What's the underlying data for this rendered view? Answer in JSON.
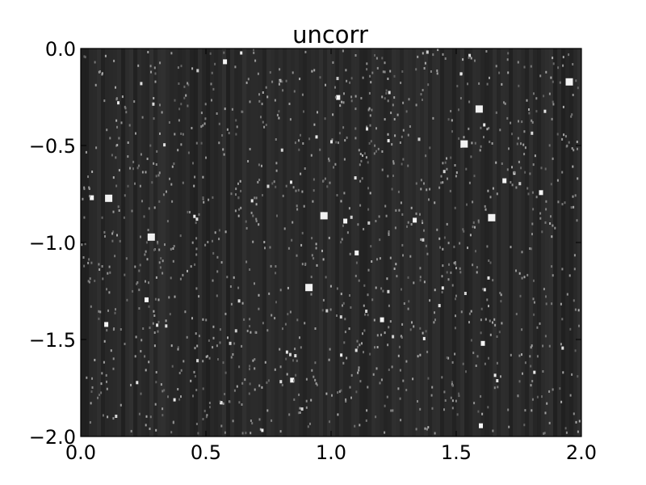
{
  "chart_data": {
    "type": "heatmap",
    "title": "uncorr",
    "xlabel": "",
    "ylabel": "",
    "xlim": [
      0.0,
      2.0
    ],
    "ylim": [
      -2.0,
      0.0
    ],
    "x_ticks": [
      "0.0",
      "0.5",
      "1.0",
      "1.5",
      "2.0"
    ],
    "y_ticks": [
      "0.0",
      "−0.5",
      "−1.0",
      "−1.5",
      "−2.0"
    ],
    "x_tick_values": [
      0.0,
      0.5,
      1.0,
      1.5,
      2.0
    ],
    "y_tick_values": [
      0.0,
      -0.5,
      -1.0,
      -1.5,
      -2.0
    ],
    "colormap": "gray",
    "grid": false,
    "bright_spots": [
      {
        "x": 0.97,
        "y": -0.86
      },
      {
        "x": 0.91,
        "y": -1.23
      },
      {
        "x": 1.59,
        "y": -0.31
      },
      {
        "x": 1.64,
        "y": -0.87
      },
      {
        "x": 1.53,
        "y": -0.49
      },
      {
        "x": 0.28,
        "y": -0.97
      },
      {
        "x": 0.11,
        "y": -0.77
      },
      {
        "x": 1.95,
        "y": -0.17
      }
    ]
  }
}
